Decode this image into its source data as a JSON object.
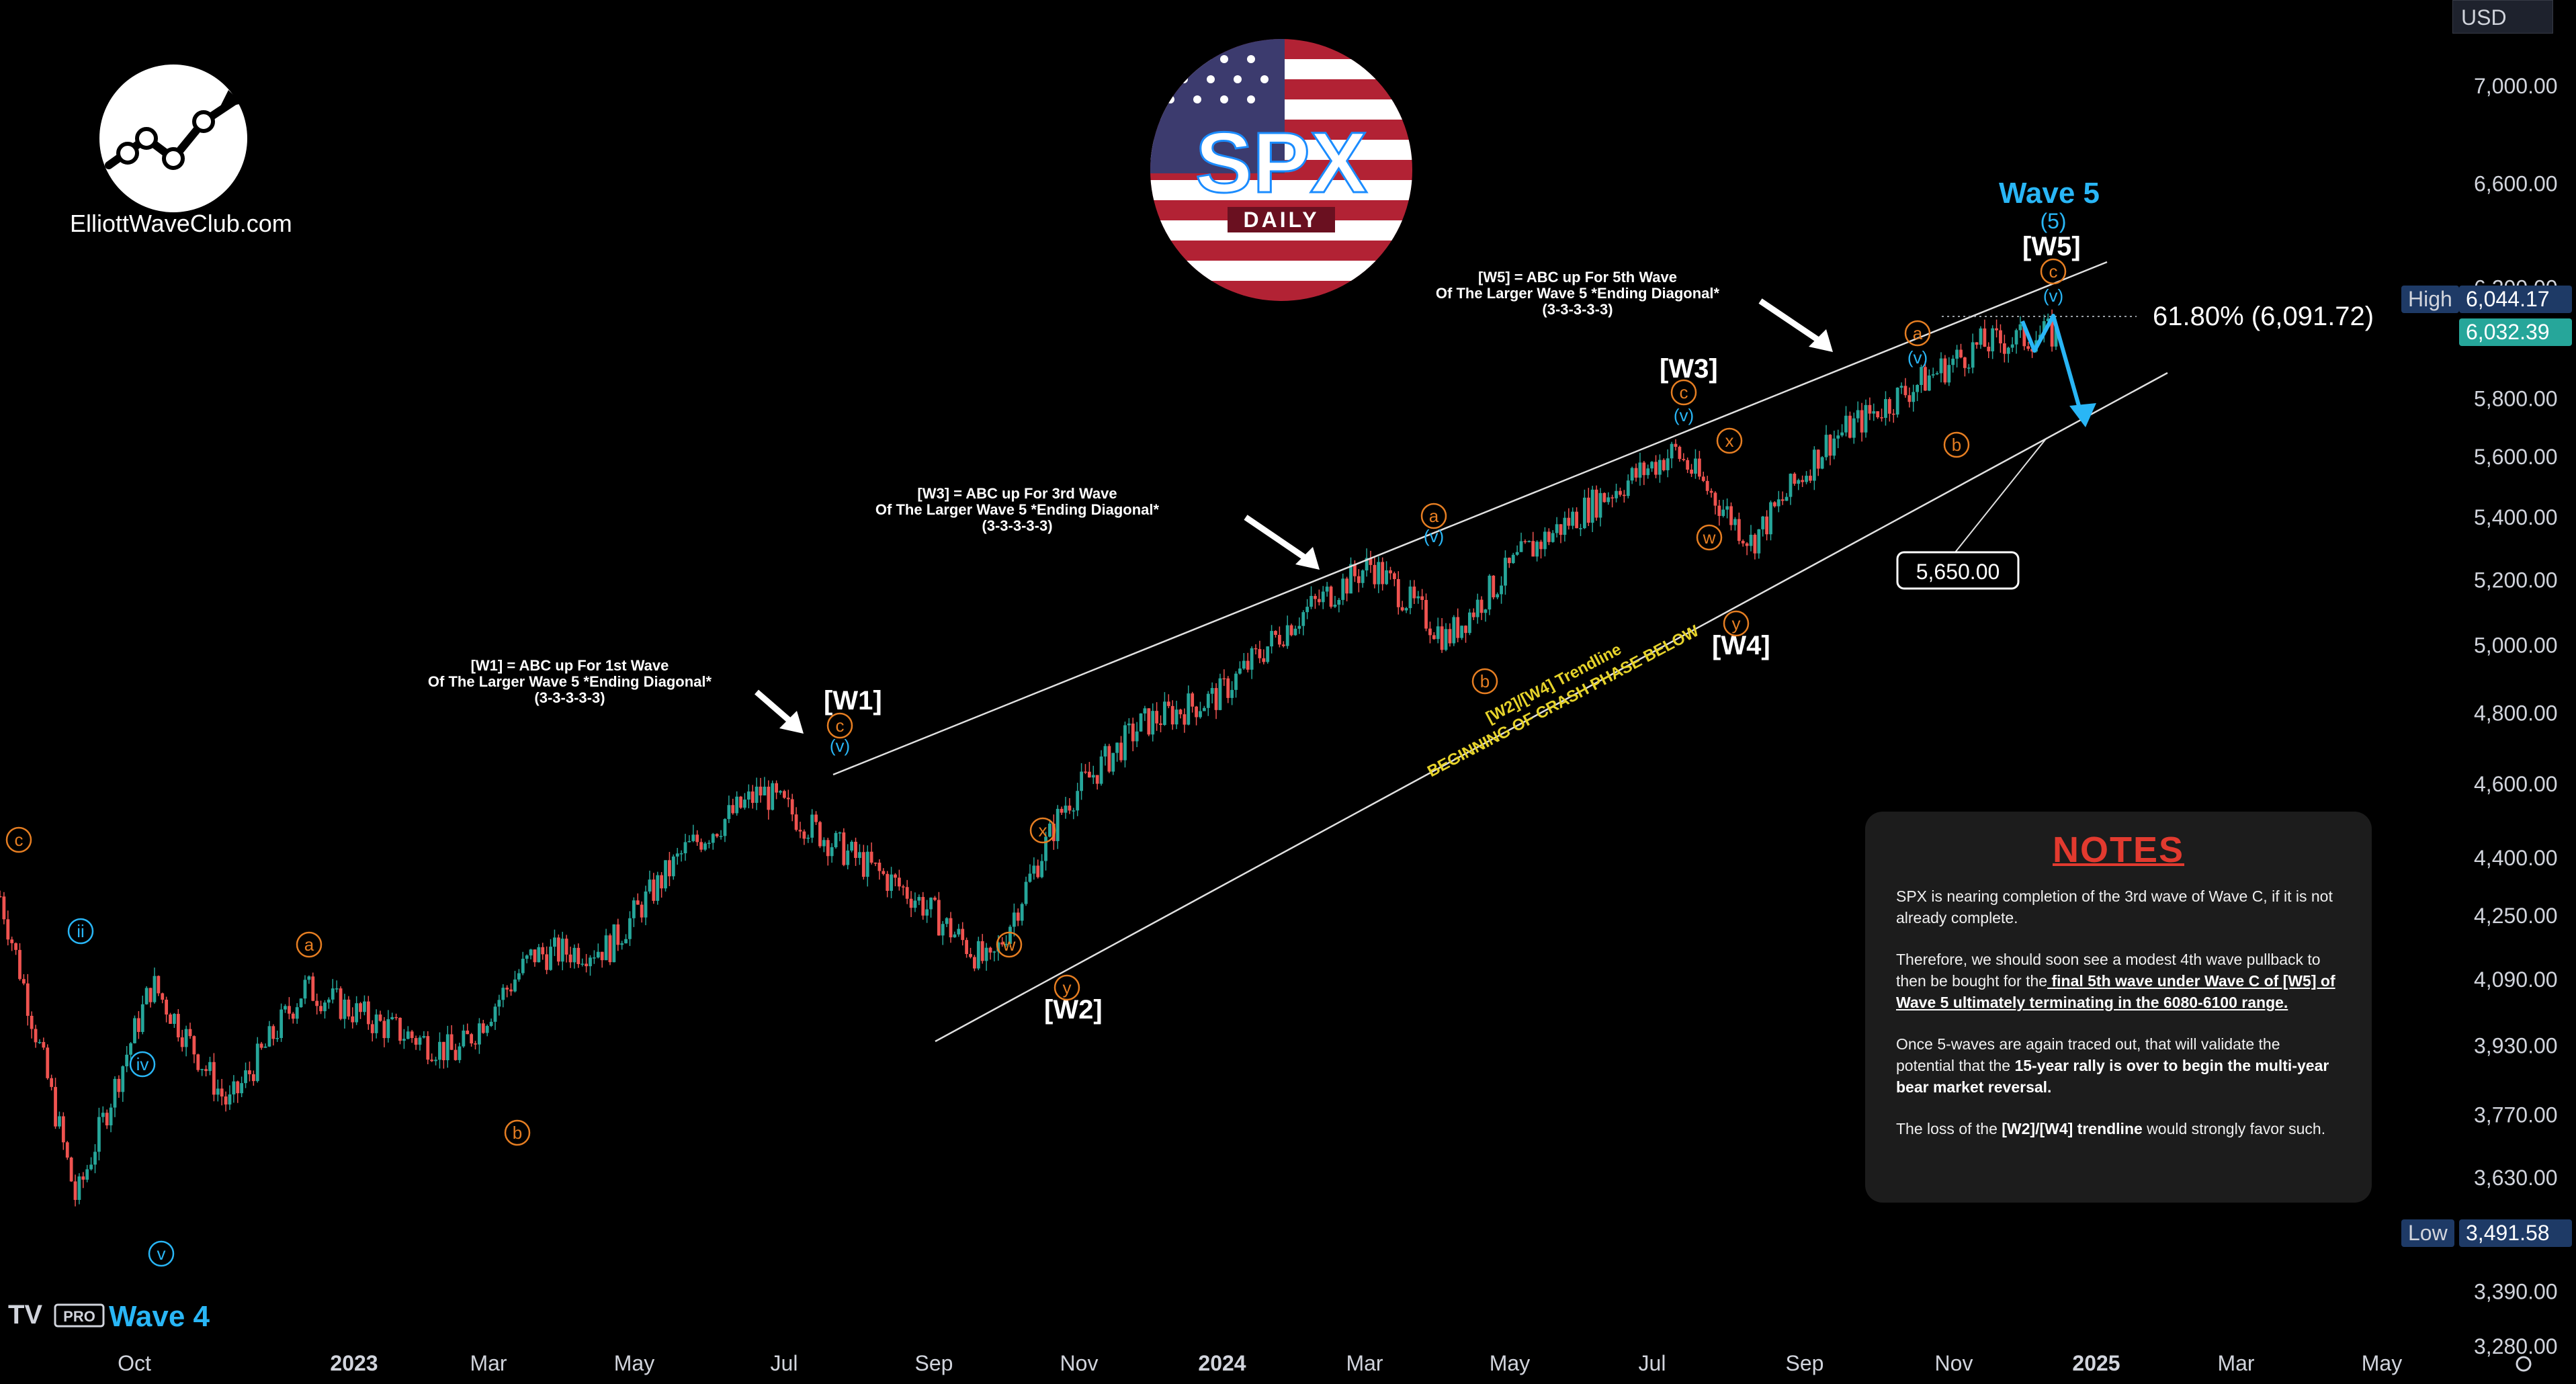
{
  "branding": {
    "site": "ElliottWaveClub.com",
    "badge_title": "SPX",
    "badge_sub": "DAILY",
    "platform_mark": "PRO",
    "wave4_label": "Wave 4"
  },
  "price_scale": {
    "currency": "USD",
    "high_label": "High",
    "high_value": "6,044.17",
    "last_value": "6,032.39",
    "low_label": "Low",
    "low_value": "3,491.58",
    "ticks": [
      "7,000.00",
      "6,600.00",
      "6,200.00",
      "5,800.00",
      "5,600.00",
      "5,400.00",
      "5,200.00",
      "5,000.00",
      "4,800.00",
      "4,600.00",
      "4,400.00",
      "4,250.00",
      "4,090.00",
      "3,930.00",
      "3,770.00",
      "3,630.00",
      "3,510.00",
      "3,390.00",
      "3,280.00"
    ]
  },
  "notes": {
    "title": "NOTES",
    "p1": "SPX is nearing completion of the 3rd wave of Wave C, if it is not already complete.",
    "p2a": "Therefore, we should soon see a modest 4th wave pullback to then be bought for the",
    "p2b": " final 5th wave under Wave C of [W5] of Wave 5 ultimately terminating in the 6080-6100 range.",
    "p3a": "Once 5-waves are again traced out, that will validate the potential that the",
    "p3b": " 15-year rally is over to begin the multi-year bear market reversal.",
    "p4a": "The loss of the",
    "p4b": " [W2]/[W4] trendline",
    "p4c": " would strongly favor such."
  },
  "chart_data": {
    "type": "line",
    "title": "SPX",
    "subtitle": "DAILY",
    "xlabel": "",
    "ylabel": "",
    "ylim": [
      3250,
      7300
    ],
    "y_scale": "log",
    "x_ticks": [
      "Oct",
      "2023",
      "Mar",
      "May",
      "Jul",
      "Sep",
      "Nov",
      "2024",
      "Mar",
      "May",
      "Jul",
      "Sep",
      "Nov",
      "2025",
      "Mar",
      "May"
    ],
    "x": [
      "2022-09",
      "2022-10",
      "2022-11",
      "2022-12",
      "2023-01",
      "2023-02",
      "2023-03",
      "2023-04",
      "2023-05",
      "2023-06",
      "2023-07",
      "2023-08",
      "2023-09",
      "2023-10",
      "2023-11",
      "2023-12",
      "2024-01",
      "2024-02",
      "2024-03",
      "2024-04",
      "2024-05",
      "2024-06",
      "2024-07",
      "2024-08",
      "2024-09",
      "2024-10",
      "2024-11",
      "2024-12"
    ],
    "series": [
      {
        "values": [
          4300,
          3580,
          4080,
          3790,
          4070,
          3980,
          3910,
          4150,
          4170,
          4420,
          4580,
          4430,
          4300,
          4120,
          4550,
          4770,
          4850,
          5080,
          5250,
          5020,
          5280,
          5460,
          5620,
          5320,
          5650,
          5820,
          5990,
          6032
        ]
      }
    ],
    "annotations": {
      "fib": "61.80% (6,091.72)",
      "target": "5,650.00",
      "wave5_title": "Wave 5",
      "wave5_num": "(5)",
      "w1_label": "[W1]",
      "w2_label": "[W2]",
      "w3_label": "[W3]",
      "w4_label": "[W4]",
      "w5_label": "[W5]",
      "w1_note": [
        "[W1] = ABC up For 1st Wave",
        "Of The Larger Wave 5 *Ending Diagonal*",
        "(3-3-3-3-3)"
      ],
      "w3_note": [
        "[W3] = ABC up For 3rd Wave",
        "Of The Larger Wave 5 *Ending Diagonal*",
        "(3-3-3-3-3)"
      ],
      "w5_note": [
        "[W5] = ABC up For 5th Wave",
        "Of The Larger Wave 5 *Ending Diagonal*",
        "(3-3-3-3-3)"
      ],
      "trendline_note": [
        "[W2]/[W4] Trendline",
        "BEGINNING OF CRASH PHASE BELOW"
      ]
    },
    "colors": {
      "up": "#26a69a",
      "down": "#ef5350",
      "orange": "#e67e22",
      "blue": "#29b6f6",
      "yellow": "#e6d32a",
      "high_box": "#1e3a66",
      "last_box": "#26a69a"
    }
  }
}
